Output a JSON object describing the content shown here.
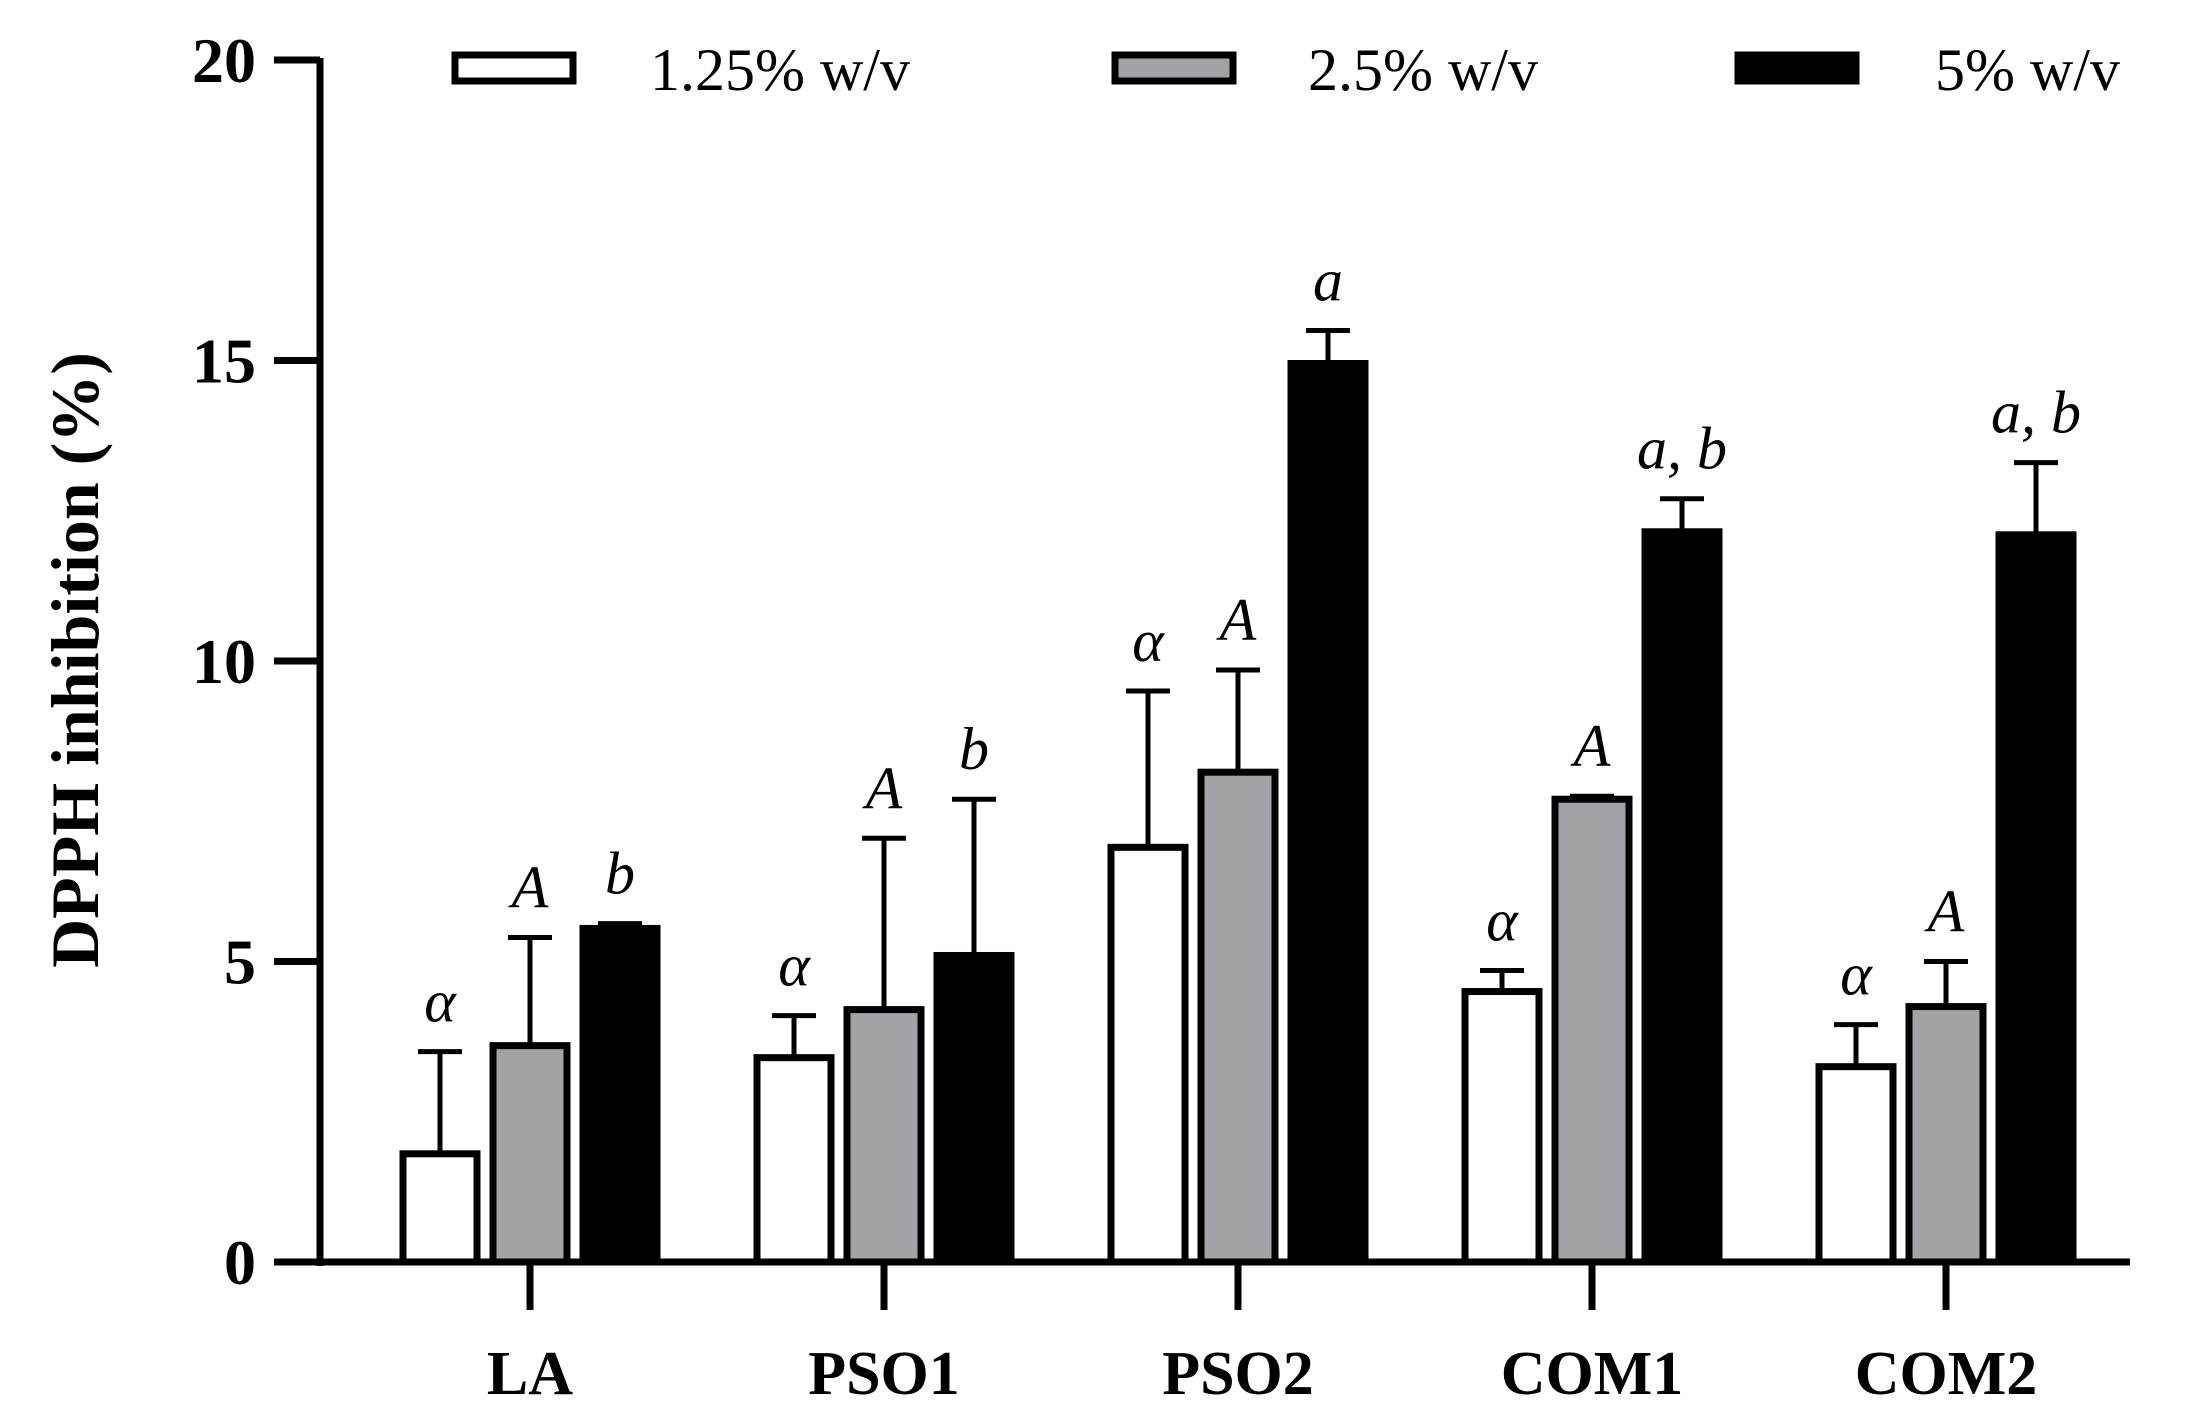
{
  "chart_data": {
    "type": "bar",
    "title": "",
    "xlabel": "",
    "ylabel": "DPPH inhibition (%)",
    "ylim": [
      0,
      20
    ],
    "yticks": [
      "0",
      "5",
      "10",
      "15",
      "20"
    ],
    "grid": false,
    "legend_position": "top",
    "categories": [
      "LA",
      "PSO1",
      "PSO2",
      "COM1",
      "COM2"
    ],
    "series": [
      {
        "name": "1.25% w/v",
        "fill": "#ffffff",
        "values": [
          1.8,
          3.4,
          6.9,
          4.5,
          3.25
        ],
        "errors": [
          1.7,
          0.7,
          2.6,
          0.35,
          0.7
        ],
        "annotations": [
          "α",
          "α",
          "α",
          "α",
          "α"
        ]
      },
      {
        "name": "2.5% w/v",
        "fill": "#a3a3a7",
        "values": [
          3.6,
          4.2,
          8.15,
          7.7,
          4.25
        ],
        "errors": [
          1.8,
          2.85,
          1.7,
          0.05,
          0.75
        ],
        "annotations": [
          "A",
          "A",
          "A",
          "A",
          "A"
        ]
      },
      {
        "name": "5% w/v",
        "fill": "#000000",
        "values": [
          5.55,
          5.1,
          14.95,
          12.15,
          12.1
        ],
        "errors": [
          0.08,
          2.6,
          0.55,
          0.55,
          1.2
        ],
        "annotations": [
          "b",
          "b",
          "a",
          "a, b",
          "a, b"
        ]
      }
    ]
  }
}
